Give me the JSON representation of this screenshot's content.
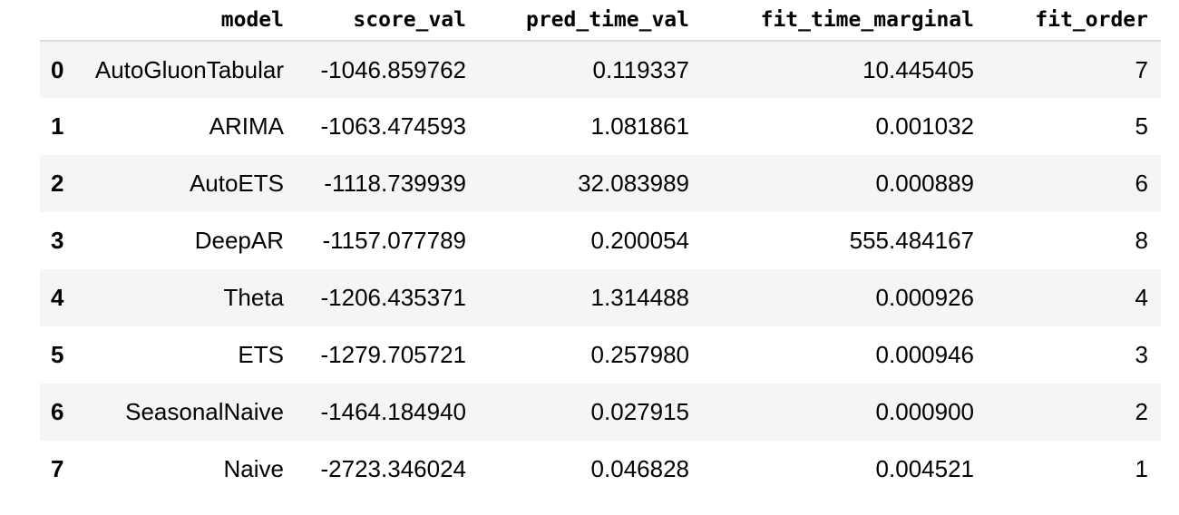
{
  "table": {
    "index_header": "",
    "columns": [
      "model",
      "score_val",
      "pred_time_val",
      "fit_time_marginal",
      "fit_order"
    ],
    "rows": [
      {
        "index": "0",
        "cells": [
          "AutoGluonTabular",
          "-1046.859762",
          "0.119337",
          "10.445405",
          "7"
        ]
      },
      {
        "index": "1",
        "cells": [
          "ARIMA",
          "-1063.474593",
          "1.081861",
          "0.001032",
          "5"
        ]
      },
      {
        "index": "2",
        "cells": [
          "AutoETS",
          "-1118.739939",
          "32.083989",
          "0.000889",
          "6"
        ]
      },
      {
        "index": "3",
        "cells": [
          "DeepAR",
          "-1157.077789",
          "0.200054",
          "555.484167",
          "8"
        ]
      },
      {
        "index": "4",
        "cells": [
          "Theta",
          "-1206.435371",
          "1.314488",
          "0.000926",
          "4"
        ]
      },
      {
        "index": "5",
        "cells": [
          "ETS",
          "-1279.705721",
          "0.257980",
          "0.000946",
          "3"
        ]
      },
      {
        "index": "6",
        "cells": [
          "SeasonalNaive",
          "-1464.184940",
          "0.027915",
          "0.000900",
          "2"
        ]
      },
      {
        "index": "7",
        "cells": [
          "Naive",
          "-2723.346024",
          "0.046828",
          "0.004521",
          "1"
        ]
      }
    ]
  },
  "colors": {
    "stripe": "#f5f5f5",
    "header_rule": "#dcdcdc",
    "text": "#000000"
  }
}
